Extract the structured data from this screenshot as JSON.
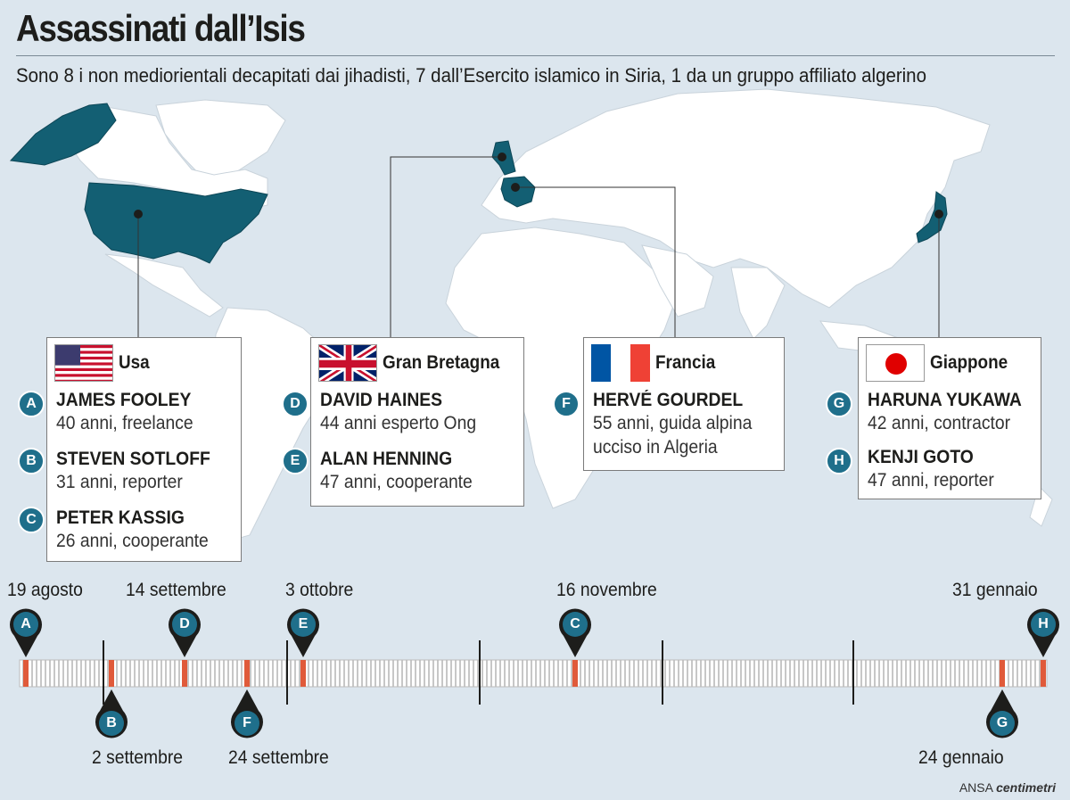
{
  "title": "Assassinati dall’Isis",
  "subtitle": "Sono 8 i non mediorientali decapitati dai jihadisti, 7 dall’Esercito islamico in Siria, 1 da un gruppo affiliato algerino",
  "colors": {
    "highlight": "#135f73",
    "badge": "#1f6f8b",
    "marker": "#e05a3a",
    "land": "#ffffff",
    "water": "#dce6ee"
  },
  "countries": [
    {
      "name": "Usa",
      "flag": "usa-flag-icon",
      "people": [
        {
          "badge": "A",
          "name": "JAMES FOOLEY",
          "desc": "40 anni, freelance"
        },
        {
          "badge": "B",
          "name": "STEVEN SOTLOFF",
          "desc": "31 anni, reporter"
        },
        {
          "badge": "C",
          "name": "PETER KASSIG",
          "desc": "26 anni, cooperante"
        }
      ]
    },
    {
      "name": "Gran Bretagna",
      "flag": "uk-flag-icon",
      "people": [
        {
          "badge": "D",
          "name": "DAVID HAINES",
          "desc": "44 anni esperto Ong"
        },
        {
          "badge": "E",
          "name": "ALAN HENNING",
          "desc": "47 anni, cooperante"
        }
      ]
    },
    {
      "name": "Francia",
      "flag": "france-flag-icon",
      "people": [
        {
          "badge": "F",
          "name": "HERVÉ GOURDEL",
          "desc": "55 anni, guida alpina",
          "desc2": "ucciso in Algeria"
        }
      ]
    },
    {
      "name": "Giappone",
      "flag": "japan-flag-icon",
      "people": [
        {
          "badge": "G",
          "name": "HARUNA YUKAWA",
          "desc": "42 anni, contractor"
        },
        {
          "badge": "H",
          "name": "KENJI GOTO",
          "desc": "47 anni, reporter"
        }
      ]
    }
  ],
  "timeline": {
    "above": [
      {
        "badge": "A",
        "date": "19 agosto"
      },
      {
        "badge": "D",
        "date": "14 settembre"
      },
      {
        "badge": "E",
        "date": "3 ottobre"
      },
      {
        "badge": "C",
        "date": "16 novembre"
      },
      {
        "badge": "H",
        "date": "31 gennaio"
      }
    ],
    "below": [
      {
        "badge": "B",
        "date": "2 settembre"
      },
      {
        "badge": "F",
        "date": "24 settembre"
      },
      {
        "badge": "G",
        "date": "24 gennaio"
      }
    ]
  },
  "credit": {
    "source": "ANSA",
    "brand": "centimetri"
  }
}
